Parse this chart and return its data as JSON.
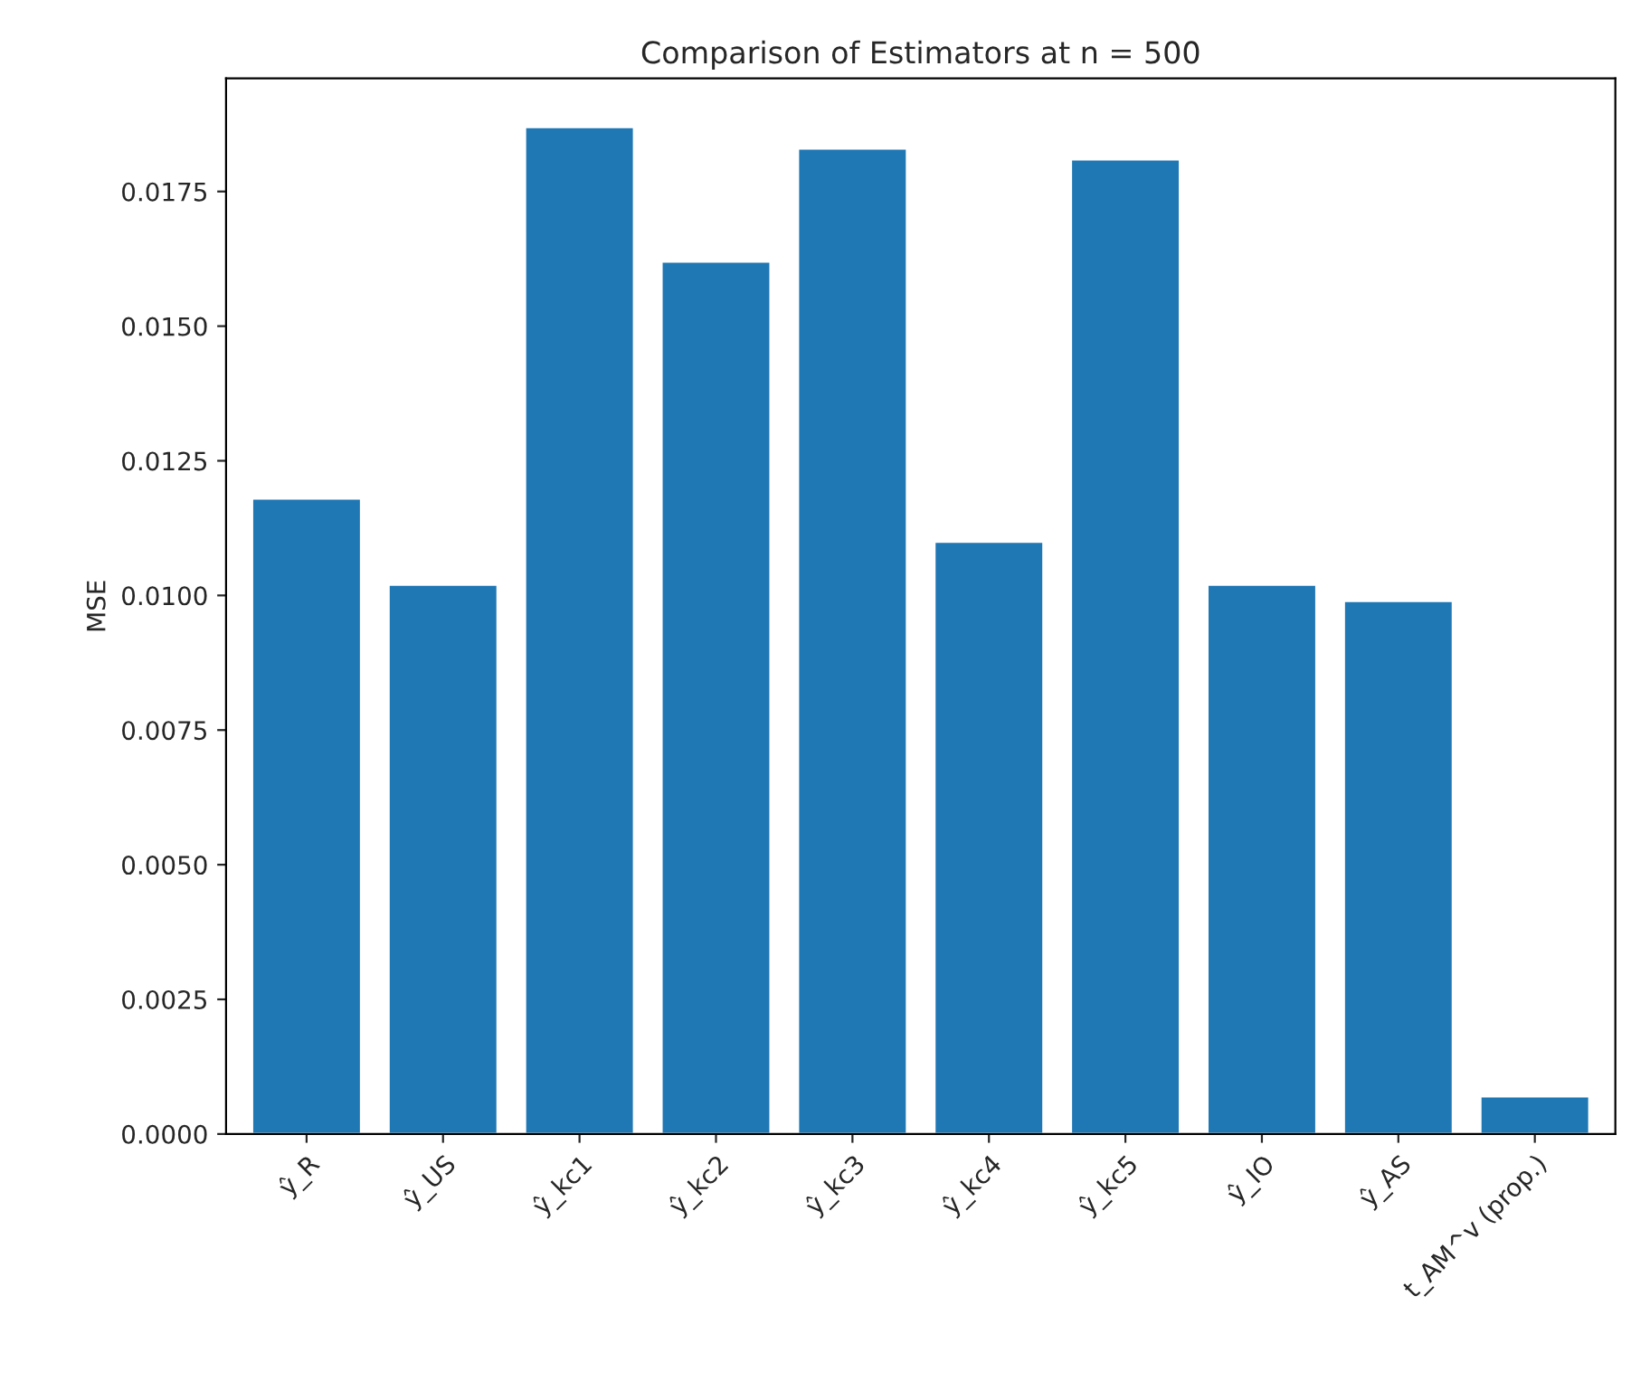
{
  "chart_data": {
    "type": "bar",
    "title": "Comparison of Estimators at n = 500",
    "ylabel": "MSE",
    "categories": [
      "ŷ_R",
      "ŷ_US",
      "ŷ_kc1",
      "ŷ_kc2",
      "ŷ_kc3",
      "ŷ_kc4",
      "ŷ_kc5",
      "ŷ_IO",
      "ŷ_AS",
      "t_AM^v (prop.)"
    ],
    "values": [
      0.0118,
      0.0102,
      0.0187,
      0.0162,
      0.0183,
      0.011,
      0.0181,
      0.0102,
      0.0099,
      0.0007
    ],
    "color": "#1f77b4",
    "ylim": [
      0,
      0.0196
    ],
    "yticks": [
      {
        "value": 0,
        "label": "0.0000"
      },
      {
        "value": 0.0025,
        "label": "0.0025"
      },
      {
        "value": 0.005,
        "label": "0.0050"
      },
      {
        "value": 0.0075,
        "label": "0.0075"
      },
      {
        "value": 0.01,
        "label": "0.0100"
      },
      {
        "value": 0.0125,
        "label": "0.0125"
      },
      {
        "value": 0.015,
        "label": "0.0150"
      },
      {
        "value": 0.0175,
        "label": "0.0175"
      }
    ],
    "grid": false,
    "legend": false
  }
}
